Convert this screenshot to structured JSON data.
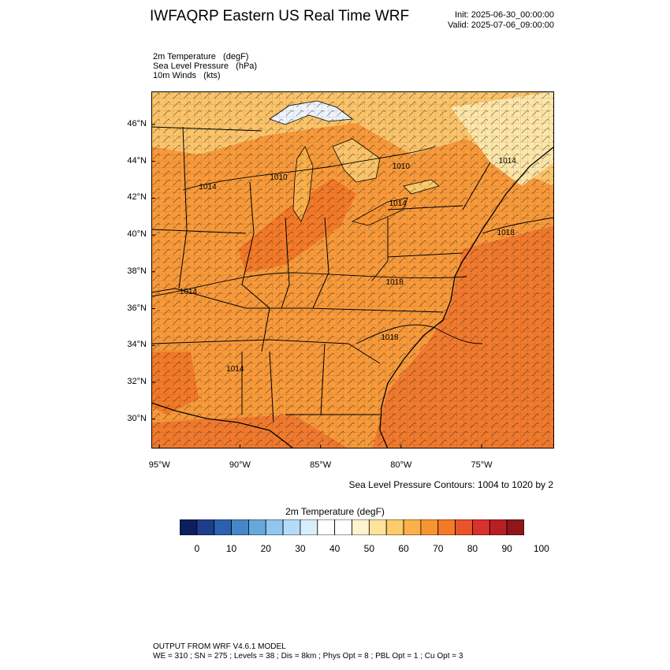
{
  "header": {
    "title": "IWFAQRP Eastern US Real Time WRF",
    "init": "Init: 2025-06-30_00:00:00",
    "valid": "Valid: 2025-07-06_09:00:00"
  },
  "fields": [
    "2m Temperature   (degF)",
    "Sea Level Pressure   (hPa)",
    "10m Winds   (kts)"
  ],
  "map": {
    "lon_range": [
      -95.5,
      -70.5
    ],
    "lat_range": [
      28.4,
      47.8
    ],
    "lat_ticks": [
      {
        "value": 46,
        "label": "46°N"
      },
      {
        "value": 44,
        "label": "44°N"
      },
      {
        "value": 42,
        "label": "42°N"
      },
      {
        "value": 40,
        "label": "40°N"
      },
      {
        "value": 38,
        "label": "38°N"
      },
      {
        "value": 36,
        "label": "36°N"
      },
      {
        "value": 34,
        "label": "34°N"
      },
      {
        "value": 32,
        "label": "32°N"
      },
      {
        "value": 30,
        "label": "30°N"
      }
    ],
    "lon_ticks": [
      {
        "value": -95,
        "label": "95°W"
      },
      {
        "value": -90,
        "label": "90°W"
      },
      {
        "value": -85,
        "label": "85°W"
      },
      {
        "value": -80,
        "label": "80°W"
      },
      {
        "value": -75,
        "label": "75°W"
      }
    ],
    "pressure_labels": [
      {
        "text": "1010",
        "lon": -80.0,
        "lat": 43.6
      },
      {
        "text": "1014",
        "lon": -92.0,
        "lat": 42.5
      },
      {
        "text": "1010",
        "lon": -87.6,
        "lat": 43.0
      },
      {
        "text": "1014",
        "lon": -80.2,
        "lat": 41.6
      },
      {
        "text": "1014",
        "lon": -73.4,
        "lat": 43.9
      },
      {
        "text": "1018",
        "lon": -73.5,
        "lat": 40.0
      },
      {
        "text": "1018",
        "lon": -80.4,
        "lat": 37.3
      },
      {
        "text": "1014",
        "lon": -93.2,
        "lat": 36.8
      },
      {
        "text": "1018",
        "lon": -80.7,
        "lat": 34.3
      },
      {
        "text": "1014",
        "lon": -90.3,
        "lat": 32.6
      }
    ]
  },
  "contours_note": "Sea Level Pressure Contours: 1004 to 1020 by 2",
  "colorbar": {
    "title": "2m Temperature  (degF)",
    "colors": [
      "#0d1f5c",
      "#1e3e8c",
      "#2b62b0",
      "#4587c6",
      "#66a8dc",
      "#8fc7ee",
      "#b5dcf6",
      "#d9eefb",
      "#ffffff",
      "#ffffff",
      "#fff2cf",
      "#fde39c",
      "#fccb6a",
      "#fbb04a",
      "#f89532",
      "#f47a28",
      "#e9542a",
      "#d8322b",
      "#b71f24",
      "#8f161b"
    ],
    "tick_labels": [
      "0",
      "10",
      "20",
      "30",
      "40",
      "50",
      "60",
      "70",
      "80",
      "90",
      "100"
    ]
  },
  "footer": {
    "line1": "OUTPUT FROM WRF V4.6.1 MODEL",
    "line2": "WE = 310 ; SN = 275 ; Levels = 38 ; Dis = 8km ; Phys Opt = 8 ; PBL Opt = 1 ; Cu Opt = 3"
  }
}
